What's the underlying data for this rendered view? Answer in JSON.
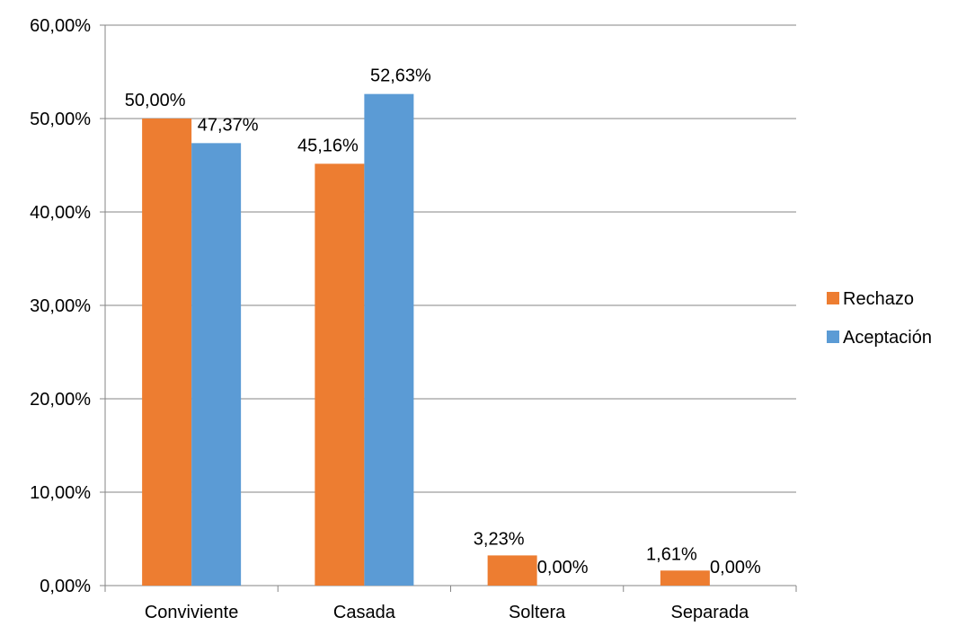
{
  "chart_data": {
    "type": "bar",
    "title": "",
    "xlabel": "",
    "ylabel": "",
    "categories": [
      "Conviviente",
      "Casada",
      "Soltera",
      "Separada"
    ],
    "series": [
      {
        "name": "Rechazo",
        "color": "#ED7D31",
        "values": [
          50.0,
          45.16,
          3.23,
          1.61
        ],
        "labels": [
          "50,00%",
          "45,16%",
          "3,23%",
          "1,61%"
        ]
      },
      {
        "name": "Aceptación",
        "color": "#5B9BD5",
        "values": [
          47.37,
          52.63,
          0.0,
          0.0
        ],
        "labels": [
          "47,37%",
          "52,63%",
          "0,00%",
          "0,00%"
        ]
      }
    ],
    "ylim": [
      0,
      60
    ],
    "yticks": [
      0,
      10,
      20,
      30,
      40,
      50,
      60
    ],
    "ytick_labels": [
      "0,00%",
      "10,00%",
      "20,00%",
      "30,00%",
      "40,00%",
      "50,00%",
      "60,00%"
    ],
    "grid": true,
    "legend_position": "right"
  }
}
